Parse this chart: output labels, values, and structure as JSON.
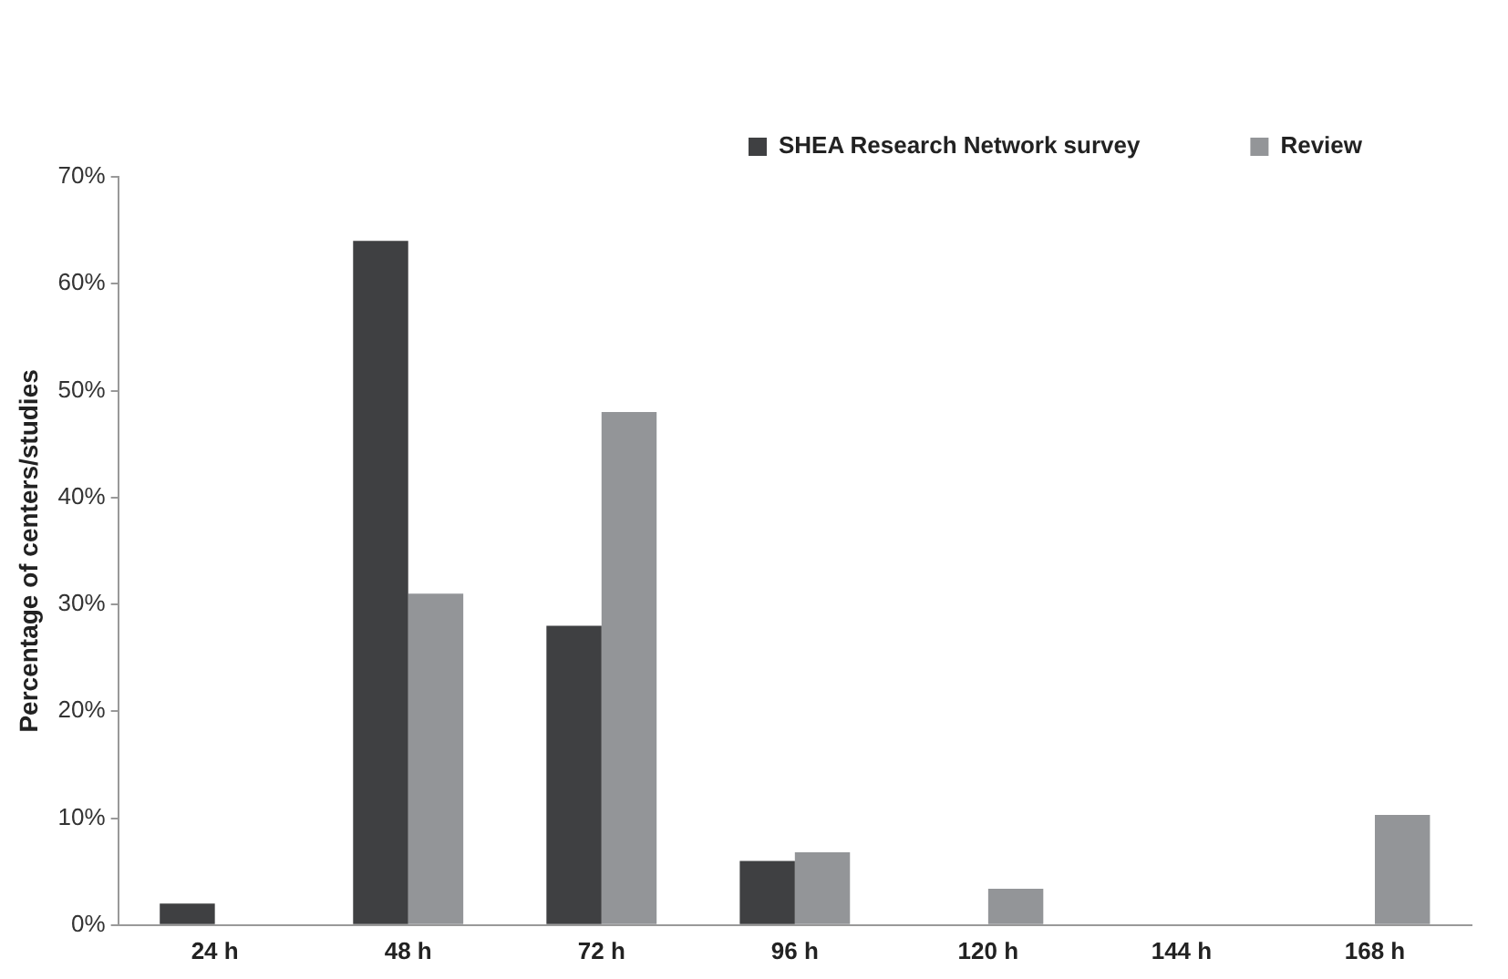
{
  "chart_data": {
    "type": "bar",
    "ylabel": "Percentage of centers/studies",
    "categories": [
      "24 h",
      "48 h",
      "72 h",
      "96 h",
      "120 h",
      "144 h",
      "168 h"
    ],
    "series": [
      {
        "name": "SHEA Research Network survey",
        "color": "#3f4042",
        "values": [
          2,
          64,
          28,
          6,
          null,
          null,
          null
        ]
      },
      {
        "name": "Review",
        "color": "#939598",
        "values": [
          null,
          31,
          48,
          6.8,
          3.4,
          null,
          10.3
        ]
      }
    ],
    "ylim": [
      0,
      70
    ],
    "yticks": [
      {
        "value": 0,
        "label": "0%"
      },
      {
        "value": 10,
        "label": "10%"
      },
      {
        "value": 20,
        "label": "20%"
      },
      {
        "value": 30,
        "label": "30%"
      },
      {
        "value": 40,
        "label": "40%"
      },
      {
        "value": 50,
        "label": "50%"
      },
      {
        "value": 60,
        "label": "60%"
      },
      {
        "value": 70,
        "label": "70%"
      }
    ],
    "grid": false,
    "legend": "top right"
  }
}
